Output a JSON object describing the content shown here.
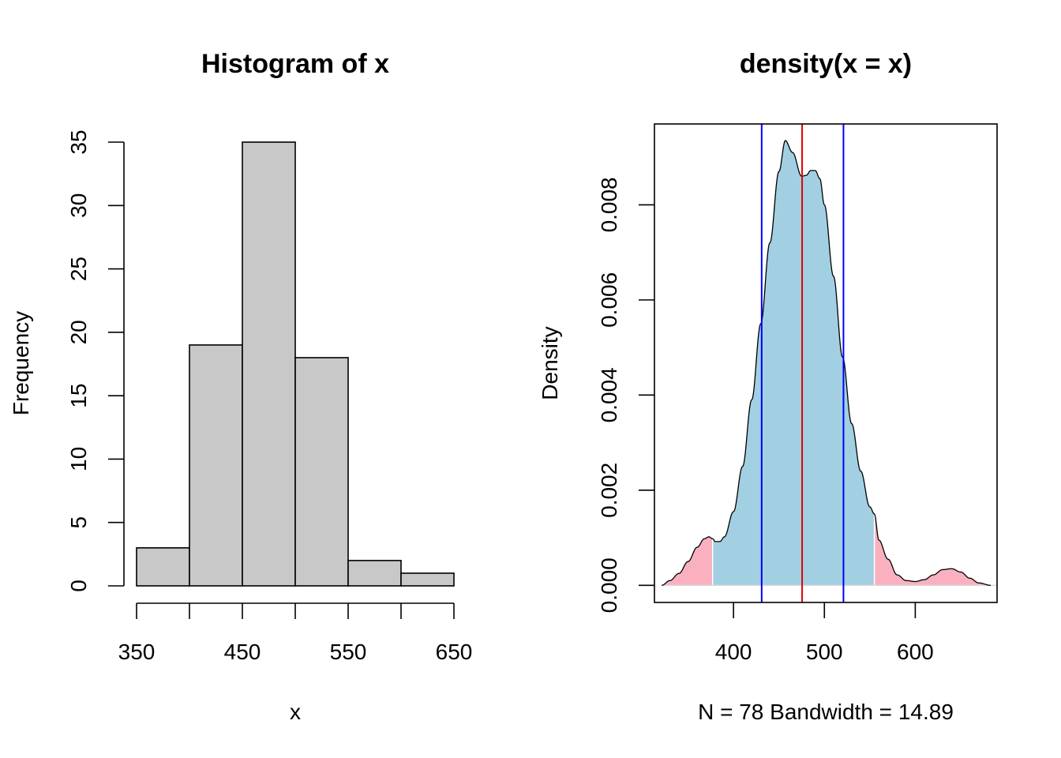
{
  "colors": {
    "hist_fill": "#c8c8c8",
    "ink": "#000000",
    "density_inner_fill": "#a2d0e2",
    "density_tail_fill": "#fbb0c0",
    "mean_line": "#e00000",
    "ci_lines": "#0000ff"
  },
  "chart_data": [
    {
      "type": "bar",
      "title": "Histogram of x",
      "xlabel": "x",
      "ylabel": "Frequency",
      "bins": [
        {
          "from": 350,
          "to": 400,
          "count": 3
        },
        {
          "from": 400,
          "to": 450,
          "count": 19
        },
        {
          "from": 450,
          "to": 500,
          "count": 35
        },
        {
          "from": 500,
          "to": 550,
          "count": 18
        },
        {
          "from": 550,
          "to": 600,
          "count": 2
        },
        {
          "from": 600,
          "to": 650,
          "count": 1
        }
      ],
      "xlim": [
        350,
        650
      ],
      "ylim": [
        0,
        35
      ],
      "xticks": [
        350,
        400,
        450,
        500,
        550,
        600,
        650
      ],
      "xtick_labels": [
        "350",
        "",
        "450",
        "",
        "550",
        "",
        "650"
      ],
      "yticks": [
        0,
        5,
        10,
        15,
        20,
        25,
        30,
        35
      ],
      "ytick_labels": [
        "0",
        "5",
        "10",
        "15",
        "20",
        "25",
        "30",
        "35"
      ],
      "grid": false
    },
    {
      "type": "area",
      "title": "density(x = x)",
      "xlabel": "N = 78   Bandwidth = 14.89",
      "ylabel": "Density",
      "x": [
        321,
        330,
        340,
        350,
        360,
        368,
        373,
        377,
        380,
        385,
        390,
        400,
        410,
        420,
        430,
        440,
        450,
        457,
        465,
        475,
        480,
        485,
        490,
        495,
        500,
        510,
        520,
        530,
        540,
        550,
        555,
        560,
        570,
        580,
        590,
        600,
        610,
        620,
        630,
        640,
        650,
        660,
        670,
        683
      ],
      "y": [
        0.0,
        0.0001,
        0.00025,
        0.0005,
        0.0008,
        0.00098,
        0.00102,
        0.00098,
        0.00092,
        0.00092,
        0.00102,
        0.00155,
        0.0025,
        0.0039,
        0.0055,
        0.0072,
        0.0087,
        0.00935,
        0.0091,
        0.0086,
        0.00862,
        0.00872,
        0.00872,
        0.00855,
        0.008,
        0.0065,
        0.0048,
        0.0034,
        0.0024,
        0.00165,
        0.0015,
        0.00095,
        0.00055,
        0.00022,
        0.0001,
        8e-05,
        0.00012,
        0.00022,
        0.00033,
        0.00035,
        0.00028,
        0.00015,
        5e-05,
        0.0
      ],
      "shaded_interval": [
        377,
        555
      ],
      "mean_line": 475.5,
      "ci_lines": [
        431,
        521
      ],
      "xlim": [
        313,
        690
      ],
      "ylim": [
        -0.00036,
        0.0097
      ],
      "xticks": [
        400,
        500,
        600
      ],
      "xtick_labels": [
        "400",
        "500",
        "600"
      ],
      "yticks": [
        0,
        0.002,
        0.004,
        0.006,
        0.008
      ],
      "ytick_labels": [
        "0.000",
        "0.002",
        "0.004",
        "0.006",
        "0.008"
      ],
      "grid": false
    }
  ]
}
